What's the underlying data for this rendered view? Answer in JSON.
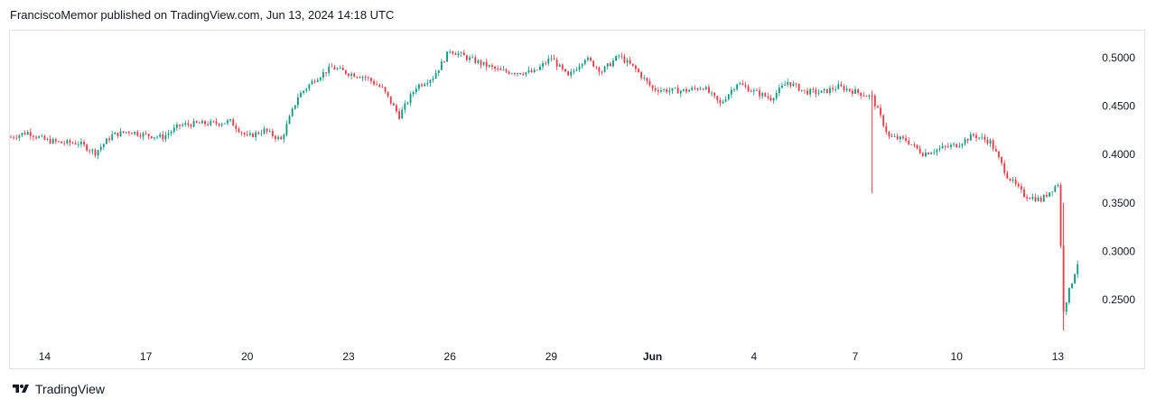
{
  "header": {
    "published_by": "FranciscoMemor published on TradingView.com, Jun 13, 2024 14:18 UTC"
  },
  "footer": {
    "brand": "TradingView"
  },
  "chart_data": {
    "type": "candlestick",
    "title": "",
    "xlabel": "",
    "ylabel": "",
    "x_ticks": [
      "14",
      "17",
      "20",
      "23",
      "26",
      "29",
      "Jun",
      "4",
      "7",
      "10",
      "13"
    ],
    "y_ticks": [
      "0.5000",
      "0.4500",
      "0.4000",
      "0.3500",
      "0.3000",
      "0.2500"
    ],
    "ylim": [
      0.208,
      0.527
    ],
    "xlim_days": [
      "May 13",
      "Jun 13"
    ],
    "grid": false,
    "colors": {
      "up": "#089981",
      "down": "#f23645"
    },
    "series": [
      {
        "name": "",
        "points": [
          {
            "x": "May 13",
            "y": 0.418
          },
          {
            "x": "May 13 12:00",
            "y": 0.423
          },
          {
            "x": "May 14",
            "y": 0.415
          },
          {
            "x": "May 14 12:00",
            "y": 0.412
          },
          {
            "x": "May 15",
            "y": 0.412
          },
          {
            "x": "May 15 12:00",
            "y": 0.402
          },
          {
            "x": "May 16",
            "y": 0.42
          },
          {
            "x": "May 16 12:00",
            "y": 0.424
          },
          {
            "x": "May 17",
            "y": 0.42
          },
          {
            "x": "May 17 12:00",
            "y": 0.418
          },
          {
            "x": "May 18",
            "y": 0.43
          },
          {
            "x": "May 18 12:00",
            "y": 0.432
          },
          {
            "x": "May 19",
            "y": 0.432
          },
          {
            "x": "May 19 12:00",
            "y": 0.434
          },
          {
            "x": "May 20",
            "y": 0.418
          },
          {
            "x": "May 20 12:00",
            "y": 0.425
          },
          {
            "x": "May 21",
            "y": 0.415
          },
          {
            "x": "May 21 12:00",
            "y": 0.46
          },
          {
            "x": "May 22",
            "y": 0.478
          },
          {
            "x": "May 22 12:00",
            "y": 0.49
          },
          {
            "x": "May 23",
            "y": 0.484
          },
          {
            "x": "May 23 12:00",
            "y": 0.48
          },
          {
            "x": "May 24",
            "y": 0.468
          },
          {
            "x": "May 24 12:00",
            "y": 0.44
          },
          {
            "x": "May 25",
            "y": 0.47
          },
          {
            "x": "May 25 12:00",
            "y": 0.48
          },
          {
            "x": "May 26",
            "y": 0.508
          },
          {
            "x": "May 26 12:00",
            "y": 0.5
          },
          {
            "x": "May 27",
            "y": 0.493
          },
          {
            "x": "May 27 12:00",
            "y": 0.486
          },
          {
            "x": "May 28",
            "y": 0.485
          },
          {
            "x": "May 28 12:00",
            "y": 0.485
          },
          {
            "x": "May 29",
            "y": 0.5
          },
          {
            "x": "May 29 12:00",
            "y": 0.48
          },
          {
            "x": "May 30",
            "y": 0.5
          },
          {
            "x": "May 30 12:00",
            "y": 0.486
          },
          {
            "x": "May 31",
            "y": 0.502
          },
          {
            "x": "May 31 12:00",
            "y": 0.488
          },
          {
            "x": "Jun 1",
            "y": 0.468
          },
          {
            "x": "Jun 1 12:00",
            "y": 0.466
          },
          {
            "x": "Jun 2",
            "y": 0.466
          },
          {
            "x": "Jun 2 12:00",
            "y": 0.47
          },
          {
            "x": "Jun 3",
            "y": 0.452
          },
          {
            "x": "Jun 3 12:00",
            "y": 0.474
          },
          {
            "x": "Jun 4",
            "y": 0.465
          },
          {
            "x": "Jun 4 12:00",
            "y": 0.458
          },
          {
            "x": "Jun 5",
            "y": 0.475
          },
          {
            "x": "Jun 5 12:00",
            "y": 0.465
          },
          {
            "x": "Jun 6",
            "y": 0.464
          },
          {
            "x": "Jun 6 12:00",
            "y": 0.47
          },
          {
            "x": "Jun 7",
            "y": 0.465
          },
          {
            "x": "Jun 7 12:00",
            "y": 0.459
          },
          {
            "x": "Jun 8",
            "y": 0.418
          },
          {
            "x": "Jun 8 12:00",
            "y": 0.415
          },
          {
            "x": "Jun 9",
            "y": 0.401
          },
          {
            "x": "Jun 9 12:00",
            "y": 0.406
          },
          {
            "x": "Jun 10",
            "y": 0.41
          },
          {
            "x": "Jun 10 12:00",
            "y": 0.42
          },
          {
            "x": "Jun 11",
            "y": 0.413
          },
          {
            "x": "Jun 11 12:00",
            "y": 0.378
          },
          {
            "x": "Jun 12",
            "y": 0.358
          },
          {
            "x": "Jun 12 12:00",
            "y": 0.353
          },
          {
            "x": "Jun 13",
            "y": 0.37
          },
          {
            "x": "Jun 13 04:00",
            "y": 0.24
          },
          {
            "x": "Jun 13 14:00",
            "y": 0.288
          }
        ]
      }
    ]
  }
}
